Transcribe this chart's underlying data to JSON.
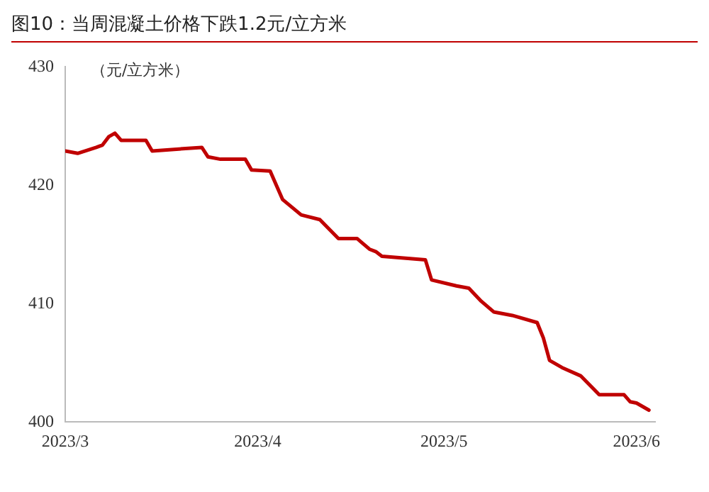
{
  "chart_data": {
    "type": "line",
    "title": "图10：当周混凝土价格下跌1.2元/立方米",
    "ylabel": "（元/立方米）",
    "x": [
      "2023-03-01",
      "2023-03-03",
      "2023-03-06",
      "2023-03-07",
      "2023-03-08",
      "2023-03-09",
      "2023-03-10",
      "2023-03-14",
      "2023-03-15",
      "2023-03-23",
      "2023-03-24",
      "2023-03-26",
      "2023-03-30",
      "2023-03-31",
      "2023-04-03",
      "2023-04-05",
      "2023-04-08",
      "2023-04-11",
      "2023-04-14",
      "2023-04-17",
      "2023-04-19",
      "2023-04-20",
      "2023-04-21",
      "2023-04-28",
      "2023-04-29",
      "2023-05-03",
      "2023-05-05",
      "2023-05-07",
      "2023-05-09",
      "2023-05-12",
      "2023-05-16",
      "2023-05-17",
      "2023-05-18",
      "2023-05-20",
      "2023-05-23",
      "2023-05-26",
      "2023-05-30",
      "2023-05-31",
      "2023-06-01",
      "2023-06-03"
    ],
    "series": [
      {
        "color": "#c00000",
        "values": [
          422.9,
          422.7,
          423.2,
          423.4,
          424.1,
          424.4,
          423.8,
          423.8,
          422.9,
          423.2,
          422.4,
          422.2,
          422.2,
          421.3,
          421.2,
          418.8,
          417.5,
          417.1,
          415.5,
          415.5,
          414.6,
          414.4,
          414.0,
          413.7,
          412.0,
          411.5,
          411.3,
          410.2,
          409.3,
          409.0,
          408.4,
          407.1,
          405.2,
          404.6,
          403.9,
          402.3,
          402.3,
          401.7,
          401.6,
          401.0
        ]
      }
    ],
    "xlim": [
      "2023-03-01",
      "2023-06-04"
    ],
    "xticks": [
      {
        "value": "2023-03-01",
        "label": "2023/3"
      },
      {
        "value": "2023-04-01",
        "label": "2023/4"
      },
      {
        "value": "2023-05-01",
        "label": "2023/5"
      },
      {
        "value": "2023-06-01",
        "label": "2023/6"
      }
    ],
    "ylim": [
      400,
      430
    ],
    "yticks": [
      400,
      410,
      420,
      430
    ],
    "grid": false,
    "legend": false,
    "marker": "none",
    "line_style": "solid"
  }
}
